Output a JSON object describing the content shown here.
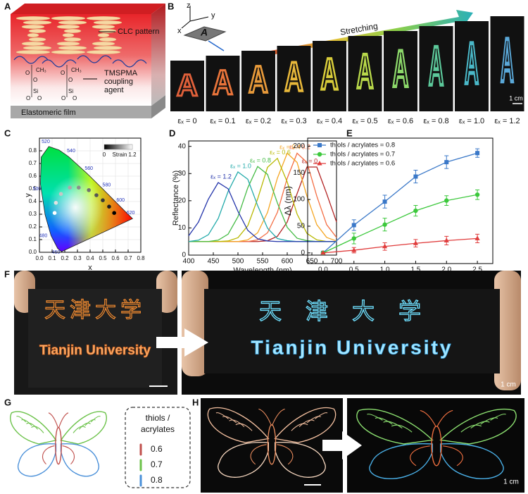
{
  "panel_labels": [
    "A",
    "B",
    "C",
    "D",
    "E",
    "F",
    "G",
    "H"
  ],
  "panel_a": {
    "clc_label": "CLC pattern",
    "tmspma_label": [
      "TMSPMA",
      "coupling",
      "agent"
    ],
    "film_label": "Elastomeric film",
    "methyl": "CH₃",
    "oxygen": "O",
    "silicon": "Si"
  },
  "panel_b": {
    "axes": [
      "z",
      "y",
      "x"
    ],
    "strain_symbol": "εₓ",
    "letter": "A",
    "arrow_label": "Stretching",
    "strains": [
      "εₓ = 0",
      "εₓ = 0.1",
      "εₓ = 0.2",
      "εₓ = 0.3",
      "εₓ = 0.4",
      "εₓ = 0.5",
      "εₓ = 0.6",
      "εₓ = 0.8",
      "εₓ = 1.0",
      "εₓ = 1.2"
    ],
    "letter_colors": [
      "#e0603a",
      "#e8743a",
      "#e89a3a",
      "#e8b83a",
      "#d8cc3a",
      "#b8d84a",
      "#8cd86a",
      "#5cc89a",
      "#4ab8c8",
      "#5aa8d8"
    ],
    "scale_bar": "1 cm"
  },
  "chart_data": [
    {
      "type": "scatter",
      "xlabel": "x",
      "ylabel": "y",
      "xlim": [
        0,
        0.8
      ],
      "ylim": [
        0,
        0.9
      ],
      "xticks": [
        {
          "value": 0,
          "label": "0.0"
        },
        0.1,
        0.2,
        0.3,
        0.4,
        0.5,
        0.6,
        0.7,
        0.8
      ],
      "yticks": [
        {
          "value": 0,
          "label": "0.0"
        },
        0.1,
        0.2,
        0.3,
        0.4,
        0.5,
        0.6,
        0.7,
        0.8
      ],
      "grid": true,
      "x": [
        0.59,
        0.55,
        0.5,
        0.45,
        0.39,
        0.31,
        0.24,
        0.17,
        0.13,
        0.12
      ],
      "values": [
        0.31,
        0.36,
        0.41,
        0.45,
        0.49,
        0.51,
        0.51,
        0.46,
        0.39,
        0.31
      ],
      "colors": [
        "#000000",
        "#1c1c1c",
        "#383838",
        "#555555",
        "#717171",
        "#8d8d8d",
        "#aaaaaa",
        "#c6c6c6",
        "#e2e2e2",
        "#ffffff"
      ],
      "locus_labels": [
        460,
        480,
        500,
        520,
        540,
        560,
        580,
        600,
        620
      ],
      "colorbar": {
        "label": "Strain",
        "ticks": [
          0,
          1.2
        ],
        "colors": [
          "#000000",
          "#ffffff"
        ]
      }
    },
    {
      "type": "line",
      "xlabel": "Wavelength (nm)",
      "ylabel": "Reflectance (%)",
      "xlim": [
        400,
        700
      ],
      "ylim": [
        0,
        42
      ],
      "xticks": [
        400,
        450,
        500,
        550,
        600,
        650,
        700
      ],
      "yticks": [
        0,
        10,
        20,
        30,
        40
      ],
      "x": [
        400,
        420,
        440,
        460,
        480,
        500,
        520,
        540,
        560,
        580,
        600,
        620,
        640,
        660,
        680,
        700
      ],
      "series": [
        {
          "name": "εₓ = 0",
          "color": "#b22222",
          "values": [
            5,
            5,
            5,
            5,
            5,
            5,
            5,
            5,
            5.3,
            6.9,
            12.2,
            22.6,
            32.4,
            32.4,
            22.6,
            12.2
          ]
        },
        {
          "name": "εₓ = 0.2",
          "color": "#f46d43",
          "values": [
            5,
            5,
            5,
            5,
            5,
            5,
            5,
            5.6,
            8.2,
            15.7,
            28.3,
            37.5,
            34.1,
            21.7,
            11.2,
            6.5
          ]
        },
        {
          "name": "εₓ = 0.4",
          "color": "#f5a623",
          "values": [
            5,
            5,
            5,
            5,
            5,
            5,
            5.6,
            8.2,
            15.7,
            28.3,
            37.5,
            34.1,
            21.7,
            11.2,
            6.5,
            5.2
          ]
        },
        {
          "name": "εₓ = 0.6",
          "color": "#b8b800",
          "values": [
            5,
            5,
            5,
            5,
            5.2,
            6.4,
            10.8,
            20.7,
            32.3,
            35.6,
            26.9,
            15.1,
            8.0,
            5.6,
            5,
            5
          ]
        },
        {
          "name": "εₓ = 0.8",
          "color": "#44bb44",
          "values": [
            5,
            5,
            5,
            5.5,
            7.7,
            14.1,
            24.8,
            32.6,
            29.7,
            19.2,
            10.2,
            6.2,
            5.3,
            5,
            5,
            5
          ]
        },
        {
          "name": "εₓ = 1.0",
          "color": "#22aaaa",
          "values": [
            5,
            5.5,
            7.5,
            13.5,
            23.4,
            30.6,
            27.9,
            18.2,
            9.9,
            6.1,
            5.3,
            5,
            5,
            5,
            5,
            5
          ]
        },
        {
          "name": "εₓ = 1.2",
          "color": "#2233aa",
          "values": [
            7.1,
            12.2,
            20.6,
            26.7,
            24.4,
            16.1,
            9.1,
            6.0,
            5.2,
            5,
            5,
            5,
            5,
            5,
            5,
            5
          ]
        }
      ]
    },
    {
      "type": "errorline",
      "xlabel": "Tensile Stress (MPa)",
      "ylabel": "Δλ (nm)",
      "xlim": [
        -0.25,
        2.75
      ],
      "ylim": [
        -20,
        215
      ],
      "xticks": [
        {
          "value": 0,
          "label": "0.0"
        },
        0.5,
        {
          "value": 1,
          "label": "1.0"
        },
        1.5,
        {
          "value": 2,
          "label": "2.0"
        },
        2.5
      ],
      "yticks": [
        0,
        50,
        100,
        150,
        200
      ],
      "legend": "upper left",
      "x": [
        0,
        0.5,
        1,
        1.5,
        2,
        2.5
      ],
      "series": [
        {
          "name": "thiols / acrylates = 0.8",
          "color": "#3a78c8",
          "marker": "square",
          "values": [
            0,
            52,
            96,
            143,
            170,
            187
          ],
          "errors": [
            0,
            10,
            12,
            12,
            12,
            8
          ]
        },
        {
          "name": "thiols / acrylates = 0.7",
          "color": "#3cc83c",
          "marker": "circle",
          "values": [
            0,
            27,
            53,
            79,
            98,
            109
          ],
          "errors": [
            0,
            10,
            12,
            10,
            9,
            9
          ]
        },
        {
          "name": "thiols / acrylates = 0.6",
          "color": "#e03c3c",
          "marker": "triangle",
          "values": [
            0,
            5,
            12,
            18,
            23,
            27
          ],
          "errors": [
            0,
            5,
            7,
            7,
            8,
            8
          ]
        }
      ]
    }
  ],
  "panel_f": {
    "chinese": "天津大学",
    "english": "Tianjin University",
    "scale_bar": "1 cm"
  },
  "panel_g": {
    "legend_title": [
      "thiols /",
      "acrylates"
    ],
    "items": [
      {
        "label": "0.6",
        "color": "#c0504d"
      },
      {
        "label": "0.7",
        "color": "#6cc24a"
      },
      {
        "label": "0.8",
        "color": "#4a90d9"
      }
    ]
  },
  "panel_h": {
    "scale_bar": "1 cm"
  }
}
